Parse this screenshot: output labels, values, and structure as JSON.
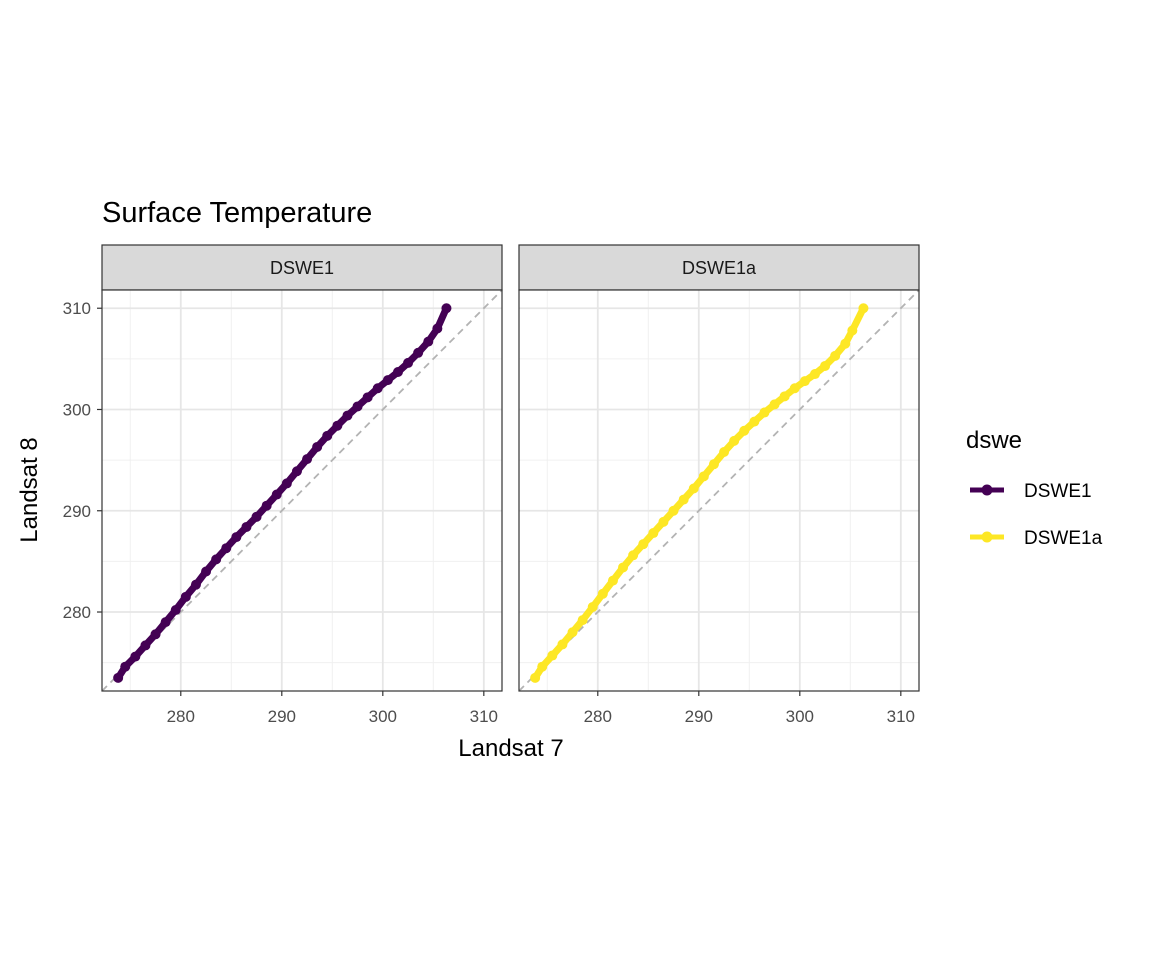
{
  "chart_data": {
    "type": "scatter",
    "title": "Surface Temperature",
    "xlabel": "Landsat 7",
    "ylabel": "Landsat 8",
    "xlim": [
      272.2,
      311.8
    ],
    "ylim": [
      272.2,
      311.8
    ],
    "x_ticks": [
      280,
      290,
      300,
      310
    ],
    "y_ticks": [
      280,
      290,
      300,
      310
    ],
    "grid": true,
    "reference_line": {
      "slope": 1,
      "intercept": 0,
      "style": "dashed",
      "color": "#b3b3b3"
    },
    "legend": {
      "title": "dswe",
      "position": "right",
      "entries": [
        {
          "label": "DSWE1",
          "color": "#440154"
        },
        {
          "label": "DSWE1a",
          "color": "#fde725"
        }
      ]
    },
    "facets": [
      {
        "label": "DSWE1",
        "color": "#440154",
        "points": [
          [
            273.8,
            273.5
          ],
          [
            274.5,
            274.6
          ],
          [
            275.5,
            275.6
          ],
          [
            276.5,
            276.7
          ],
          [
            277.5,
            277.8
          ],
          [
            278.5,
            279.0
          ],
          [
            279.5,
            280.2
          ],
          [
            280.5,
            281.5
          ],
          [
            281.5,
            282.7
          ],
          [
            282.5,
            284.0
          ],
          [
            283.5,
            285.2
          ],
          [
            284.5,
            286.3
          ],
          [
            285.5,
            287.4
          ],
          [
            286.5,
            288.4
          ],
          [
            287.5,
            289.4
          ],
          [
            288.5,
            290.5
          ],
          [
            289.5,
            291.6
          ],
          [
            290.5,
            292.7
          ],
          [
            291.5,
            293.9
          ],
          [
            292.5,
            295.1
          ],
          [
            293.5,
            296.3
          ],
          [
            294.5,
            297.4
          ],
          [
            295.5,
            298.4
          ],
          [
            296.5,
            299.4
          ],
          [
            297.5,
            300.3
          ],
          [
            298.5,
            301.2
          ],
          [
            299.5,
            302.1
          ],
          [
            300.5,
            302.9
          ],
          [
            301.5,
            303.7
          ],
          [
            302.5,
            304.6
          ],
          [
            303.5,
            305.6
          ],
          [
            304.5,
            306.7
          ],
          [
            305.4,
            308.0
          ],
          [
            306.3,
            310.0
          ]
        ]
      },
      {
        "label": "DSWE1a",
        "color": "#fde725",
        "points": [
          [
            273.8,
            273.5
          ],
          [
            274.5,
            274.6
          ],
          [
            275.5,
            275.7
          ],
          [
            276.5,
            276.8
          ],
          [
            277.5,
            278.0
          ],
          [
            278.5,
            279.2
          ],
          [
            279.5,
            280.5
          ],
          [
            280.5,
            281.8
          ],
          [
            281.5,
            283.1
          ],
          [
            282.5,
            284.4
          ],
          [
            283.5,
            285.6
          ],
          [
            284.5,
            286.7
          ],
          [
            285.5,
            287.8
          ],
          [
            286.5,
            288.9
          ],
          [
            287.5,
            290.0
          ],
          [
            288.5,
            291.1
          ],
          [
            289.5,
            292.2
          ],
          [
            290.5,
            293.4
          ],
          [
            291.5,
            294.6
          ],
          [
            292.5,
            295.8
          ],
          [
            293.5,
            296.9
          ],
          [
            294.5,
            297.9
          ],
          [
            295.5,
            298.8
          ],
          [
            296.5,
            299.7
          ],
          [
            297.5,
            300.5
          ],
          [
            298.5,
            301.3
          ],
          [
            299.5,
            302.1
          ],
          [
            300.5,
            302.8
          ],
          [
            301.5,
            303.5
          ],
          [
            302.5,
            304.3
          ],
          [
            303.5,
            305.3
          ],
          [
            304.5,
            306.5
          ],
          [
            305.2,
            307.8
          ],
          [
            306.3,
            310.0
          ]
        ]
      }
    ]
  }
}
